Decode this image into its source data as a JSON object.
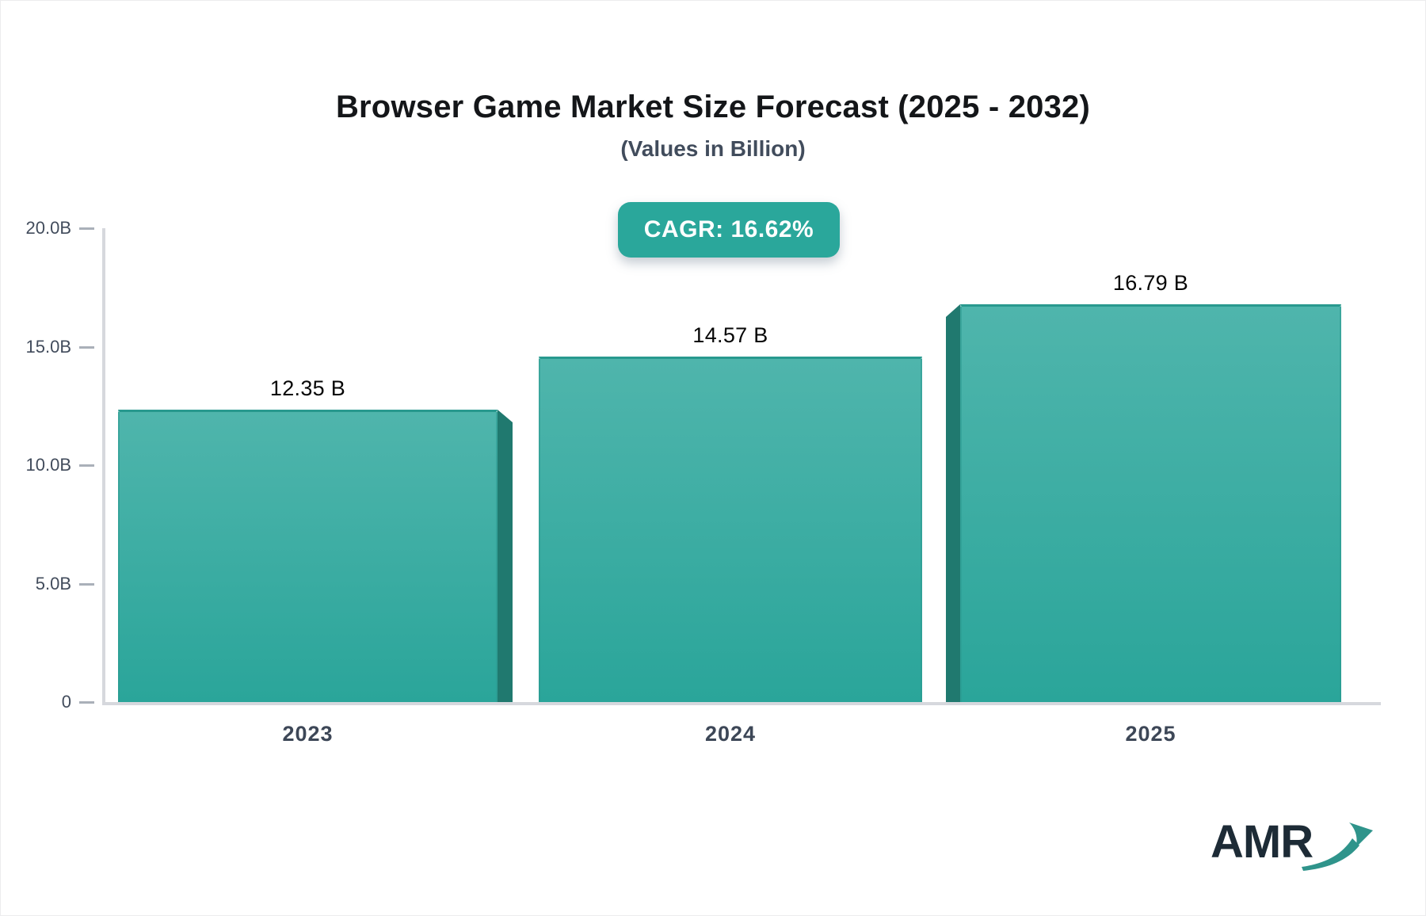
{
  "header": {
    "title": "Browser Game Market Size Forecast (2025 - 2032)",
    "subtitle": "(Values in Billion)",
    "cagr_label": "CAGR: 16.62%"
  },
  "chart_data": {
    "type": "bar",
    "title": "Browser Game Market Size Forecast (2025 - 2032)",
    "subtitle": "(Values in Billion)",
    "cagr_percent": 16.62,
    "categories": [
      "2023",
      "2024",
      "2025"
    ],
    "values": [
      12.35,
      14.57,
      16.79
    ],
    "value_labels": [
      "12.35 B",
      "14.57 B",
      "16.79 B"
    ],
    "unit": "Billion",
    "y_ticks": [
      {
        "label": "20.0B",
        "value": 20
      },
      {
        "label": "15.0B",
        "value": 15
      },
      {
        "label": "10.0B",
        "value": 10
      },
      {
        "label": "5.0B",
        "value": 5
      },
      {
        "label": "0",
        "value": 0
      }
    ],
    "ylim": [
      0,
      20
    ],
    "grid": false,
    "legend": false,
    "bar_style": "3d-extruded-teal-gradient"
  },
  "branding": {
    "logo_text": "AMR"
  },
  "colors": {
    "accent_teal": "#2aa79b",
    "bar_gradient_top": "#4fb5ac",
    "bar_gradient_bottom": "#2aa59a",
    "bar_top_edge": "#28998e",
    "bar_side_3d": "#20796f",
    "axis_line": "#d6d8dd",
    "axis_text": "#424c5c",
    "title_text": "#141619",
    "logo_navy": "#1d2b36",
    "logo_teal": "#2f948b"
  }
}
